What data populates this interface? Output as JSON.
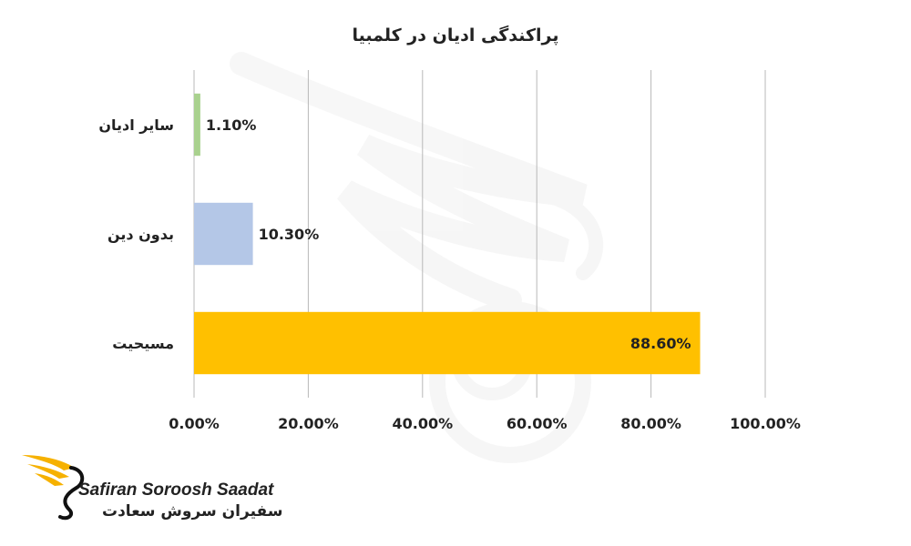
{
  "chart_data": {
    "type": "bar",
    "orientation": "horizontal",
    "title": "پراکندگی ادیان در کلمبیا",
    "categories": [
      "سایر ادیان",
      "بدون دین",
      "مسیحیت"
    ],
    "values": [
      1.1,
      10.3,
      88.6
    ],
    "value_labels": [
      "1.10%",
      "10.30%",
      "88.60%"
    ],
    "colors": [
      "#a9d18e",
      "#b4c7e7",
      "#ffc000"
    ],
    "xlim": [
      0,
      100
    ],
    "xticks": [
      0,
      20,
      40,
      60,
      80,
      100
    ],
    "xtick_labels": [
      "0.00%",
      "20.00%",
      "40.00%",
      "60.00%",
      "80.00%",
      "100.00%"
    ],
    "grid": true,
    "legend": "none"
  },
  "logo": {
    "text_en": "Safiran Soroosh Saadat",
    "text_fa": "سفیران سروش سعادت",
    "colors": {
      "wing": "#f6b100",
      "mark": "#111111"
    }
  }
}
